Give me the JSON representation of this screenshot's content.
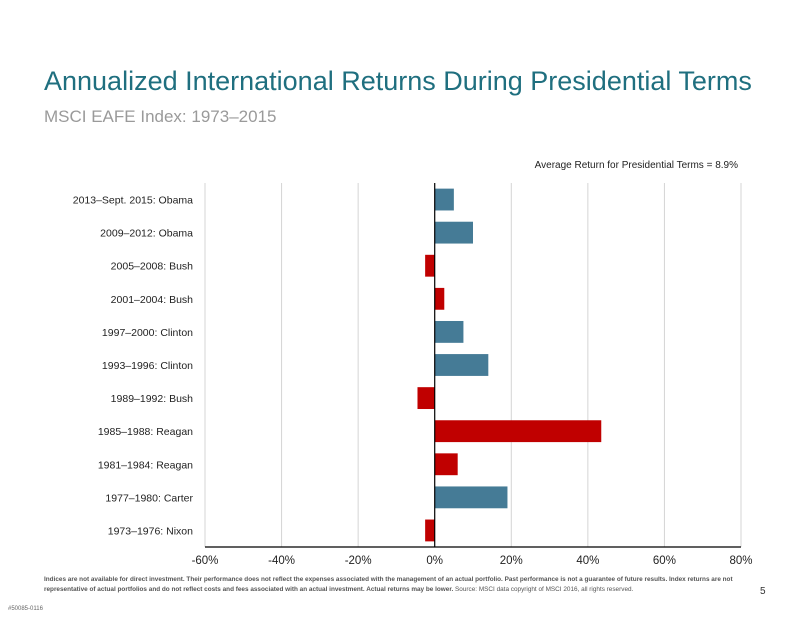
{
  "header": {
    "title": "Annualized International Returns During Presidential Terms",
    "subtitle": "MSCI EAFE Index: 1973–2015"
  },
  "annotation": "Average Return for Presidential Terms = 8.9%",
  "footer": {
    "disclaimer": "Indices are not available for direct investment. Their performance does not reflect the expenses associated with the management of an actual portfolio. Past performance is not a guarantee of future results. Index returns are not representative of actual portfolios and do not reflect costs and fees associated with an actual investment. Actual returns may be lower.",
    "source": "Source: MSCI data copyright of MSCI 2016, all rights reserved.",
    "page_number": "5",
    "doc_code": "#50085-0116"
  },
  "colors": {
    "positive": "#457b96",
    "negative": "#c00000",
    "title": "#1f6f7f",
    "grid": "#d4d4d4"
  },
  "chart_data": {
    "type": "bar",
    "orientation": "horizontal",
    "categories": [
      "2013–Sept. 2015: Obama",
      "2009–2012: Obama",
      "2005–2008: Bush",
      "2001–2004: Bush",
      "1997–2000: Clinton",
      "1993–1996: Clinton",
      "1989–1992: Bush",
      "1985–1988: Reagan",
      "1981–1984: Reagan",
      "1977–1980: Carter",
      "1973–1976: Nixon"
    ],
    "values": [
      5.0,
      10.0,
      -2.5,
      2.5,
      7.5,
      14.0,
      -4.5,
      43.5,
      6.0,
      19.0,
      -2.5
    ],
    "xlim": [
      -60,
      80
    ],
    "xticks": [
      -60,
      -40,
      -20,
      0,
      20,
      40,
      60,
      80
    ],
    "xtick_labels": [
      "-60%",
      "-40%",
      "-20%",
      "0%",
      "20%",
      "40%",
      "60%",
      "80%"
    ],
    "grid": true,
    "bar_color_rule": "red for presidents whose term is colored red (Republican), blue otherwise"
  }
}
